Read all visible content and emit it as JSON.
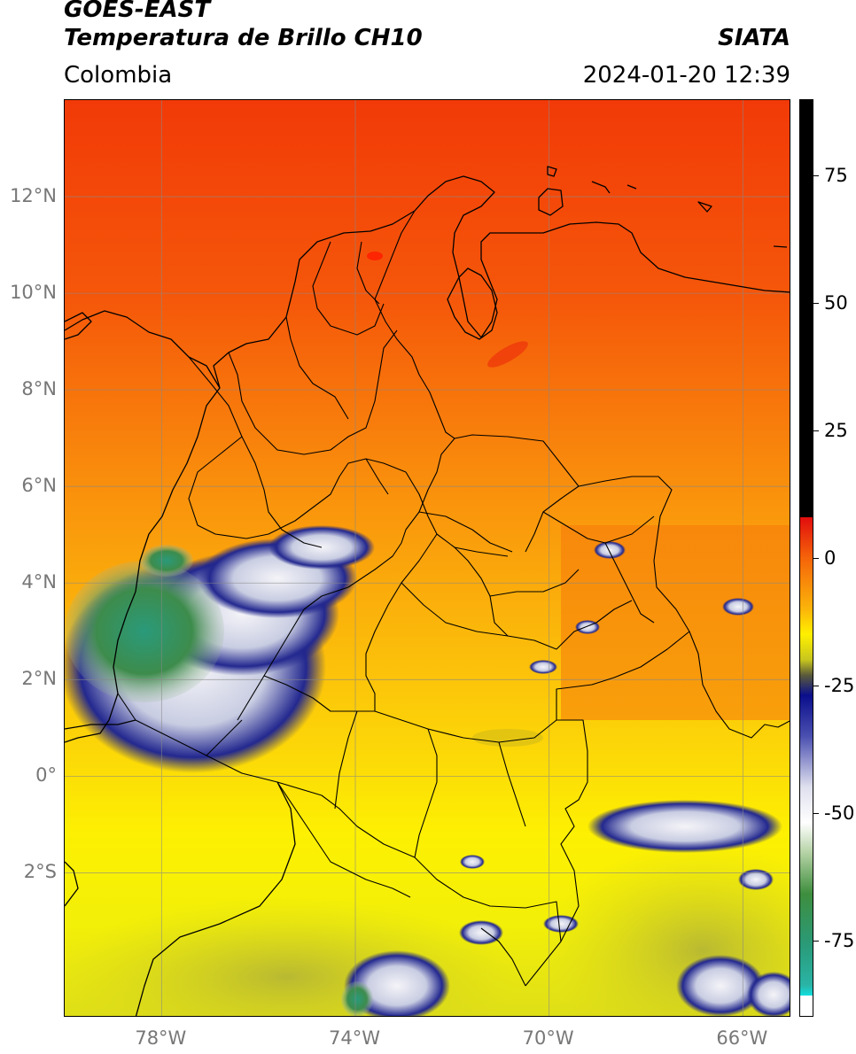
{
  "header": {
    "satellite": "GOES-EAST",
    "product": "Temperatura de Brillo CH10",
    "brand": "SIATA",
    "region": "Colombia",
    "datetime": "2024-01-20 12:39"
  },
  "map": {
    "lat_ticks": [
      {
        "value": 12,
        "label": "12°N"
      },
      {
        "value": 10,
        "label": "10°N"
      },
      {
        "value": 8,
        "label": "8°N"
      },
      {
        "value": 6,
        "label": "6°N"
      },
      {
        "value": 4,
        "label": "4°N"
      },
      {
        "value": 2,
        "label": "2°N"
      },
      {
        "value": 0,
        "label": "0°"
      },
      {
        "value": -2,
        "label": "2°S"
      }
    ],
    "lon_ticks": [
      {
        "value": -78,
        "label": "78°W"
      },
      {
        "value": -74,
        "label": "74°W"
      },
      {
        "value": -70,
        "label": "70°W"
      },
      {
        "value": -66,
        "label": "66°W"
      }
    ],
    "extent": {
      "lon_min": -80,
      "lon_max": -65,
      "lat_min": -5,
      "lat_max": 14
    }
  },
  "colorbar": {
    "ticks": [
      {
        "value": 75,
        "label": "75"
      },
      {
        "value": 50,
        "label": "50"
      },
      {
        "value": 25,
        "label": "25"
      },
      {
        "value": 0,
        "label": "0"
      },
      {
        "value": -25,
        "label": "-25"
      },
      {
        "value": -50,
        "label": "-50"
      },
      {
        "value": -75,
        "label": "-75"
      }
    ],
    "range": [
      -90,
      90
    ]
  }
}
